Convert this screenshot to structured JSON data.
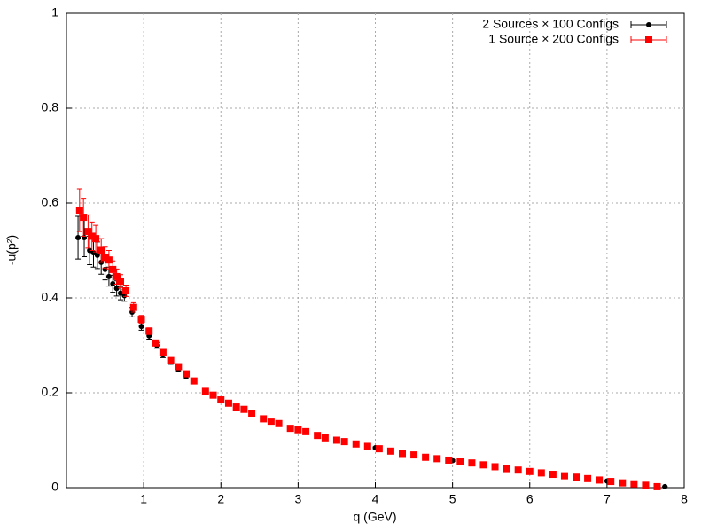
{
  "chart_data": {
    "type": "scatter",
    "x_label": "q (GeV)",
    "y_label": "-u(p²)",
    "xlim": [
      0,
      8
    ],
    "ylim": [
      0,
      1
    ],
    "xticks": [
      1,
      2,
      3,
      4,
      5,
      6,
      7,
      8
    ],
    "yticks": [
      0,
      0.2,
      0.4,
      0.6,
      0.8,
      1
    ],
    "grid": true,
    "legend": "top-right",
    "series": [
      {
        "name": "2 Sources × 100 Configs",
        "color": "#000000",
        "marker": "circle",
        "x": [
          0.15,
          0.23,
          0.3,
          0.35,
          0.4,
          0.45,
          0.5,
          0.55,
          0.6,
          0.65,
          0.7,
          0.75,
          0.85,
          0.97,
          1.07,
          1.17,
          1.25,
          1.35,
          1.45,
          1.55,
          2.0,
          3.0,
          4.0,
          5.0,
          6.0,
          7.0,
          7.5,
          7.75
        ],
        "values": [
          0.527,
          0.527,
          0.5,
          0.495,
          0.49,
          0.475,
          0.46,
          0.445,
          0.43,
          0.42,
          0.41,
          0.405,
          0.37,
          0.34,
          0.32,
          0.3,
          0.28,
          0.265,
          0.25,
          0.235,
          0.185,
          0.122,
          0.084,
          0.057,
          0.034,
          0.014,
          0.005,
          0.002
        ],
        "errors": [
          0.045,
          0.04,
          0.03,
          0.03,
          0.028,
          0.025,
          0.022,
          0.02,
          0.018,
          0.016,
          0.014,
          0.012,
          0.01,
          0.008,
          0.007,
          0.006,
          0.006,
          0.005,
          0.005,
          0.005,
          0.003,
          0.002,
          0.002,
          0.002,
          0.001,
          0.001,
          0.001,
          0.001
        ]
      },
      {
        "name": "1 Source × 200 Configs",
        "color": "#ff0000",
        "marker": "square",
        "x": [
          0.17,
          0.22,
          0.28,
          0.33,
          0.38,
          0.45,
          0.5,
          0.55,
          0.6,
          0.65,
          0.7,
          0.77,
          0.87,
          0.97,
          1.07,
          1.15,
          1.25,
          1.35,
          1.45,
          1.55,
          1.65,
          1.8,
          1.9,
          2.0,
          2.1,
          2.2,
          2.3,
          2.4,
          2.55,
          2.65,
          2.75,
          2.9,
          3.0,
          3.1,
          3.25,
          3.35,
          3.5,
          3.6,
          3.75,
          3.9,
          4.05,
          4.2,
          4.35,
          4.5,
          4.65,
          4.8,
          4.95,
          5.1,
          5.25,
          5.4,
          5.55,
          5.7,
          5.85,
          6.0,
          6.15,
          6.3,
          6.45,
          6.6,
          6.75,
          6.9,
          7.05,
          7.2,
          7.35,
          7.5,
          7.65
        ],
        "values": [
          0.585,
          0.57,
          0.54,
          0.53,
          0.525,
          0.5,
          0.485,
          0.48,
          0.46,
          0.445,
          0.435,
          0.415,
          0.38,
          0.355,
          0.33,
          0.305,
          0.285,
          0.268,
          0.255,
          0.24,
          0.225,
          0.203,
          0.195,
          0.185,
          0.178,
          0.17,
          0.165,
          0.157,
          0.145,
          0.14,
          0.135,
          0.125,
          0.122,
          0.118,
          0.11,
          0.105,
          0.1,
          0.097,
          0.092,
          0.087,
          0.082,
          0.077,
          0.072,
          0.069,
          0.064,
          0.061,
          0.058,
          0.055,
          0.052,
          0.048,
          0.044,
          0.04,
          0.037,
          0.034,
          0.031,
          0.028,
          0.025,
          0.022,
          0.019,
          0.016,
          0.013,
          0.01,
          0.008,
          0.005,
          0.002
        ],
        "errors": [
          0.045,
          0.04,
          0.035,
          0.03,
          0.028,
          0.025,
          0.022,
          0.02,
          0.018,
          0.016,
          0.014,
          0.012,
          0.01,
          0.008,
          0.007,
          0.006,
          0.006,
          0.005,
          0.005,
          0.005,
          0.004,
          0.004,
          0.003,
          0.003,
          0.003,
          0.003,
          0.003,
          0.002,
          0.002,
          0.002,
          0.002,
          0.002,
          0.002,
          0.002,
          0.002,
          0.002,
          0.002,
          0.002,
          0.002,
          0.002,
          0.002,
          0.002,
          0.002,
          0.002,
          0.001,
          0.001,
          0.001,
          0.001,
          0.001,
          0.001,
          0.001,
          0.001,
          0.001,
          0.001,
          0.001,
          0.001,
          0.001,
          0.001,
          0.001,
          0.001,
          0.001,
          0.001,
          0.001,
          0.001,
          0.001
        ]
      }
    ]
  }
}
